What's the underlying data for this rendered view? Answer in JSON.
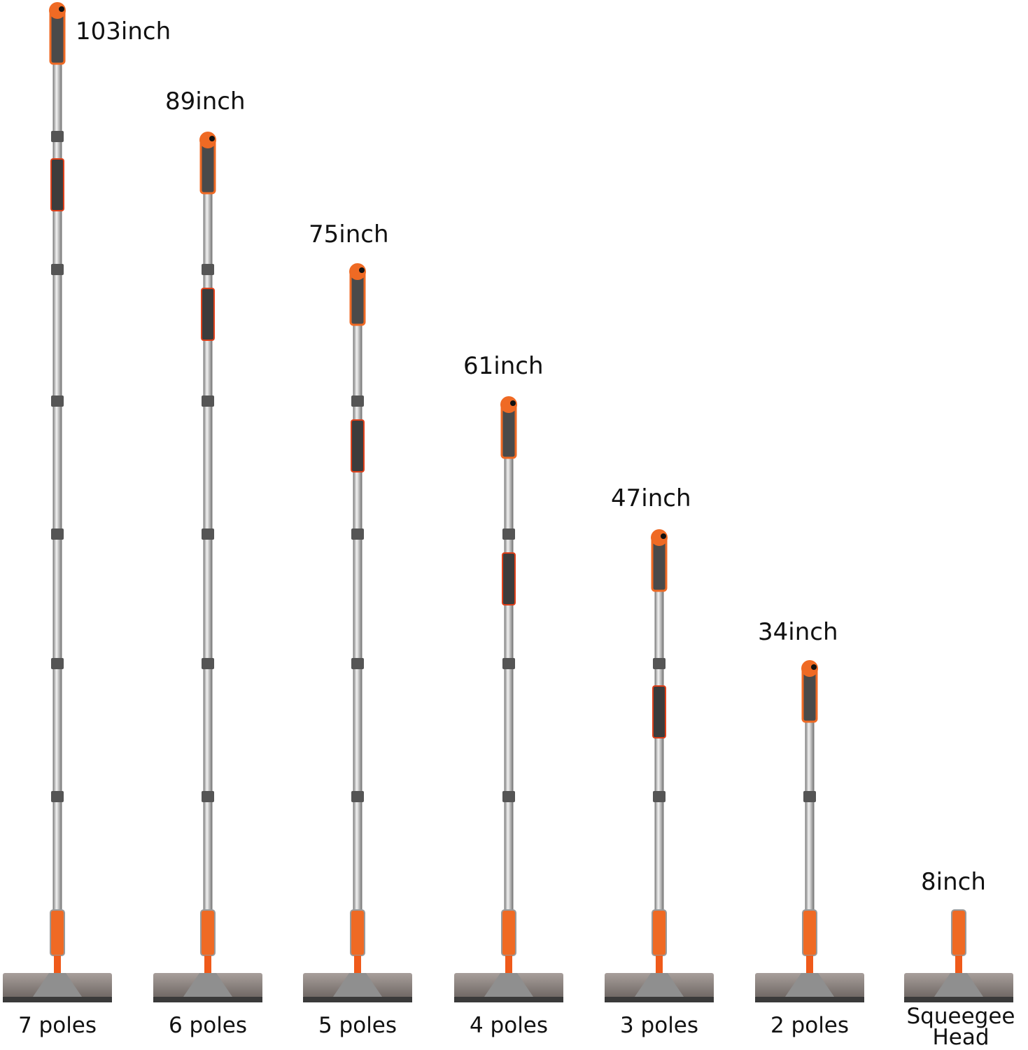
{
  "items": [
    {
      "length": "103inch",
      "label": "7 poles"
    },
    {
      "length": "89inch",
      "label": "6 poles"
    },
    {
      "length": "75inch",
      "label": "5 poles"
    },
    {
      "length": "61inch",
      "label": "4 poles"
    },
    {
      "length": "47inch",
      "label": "3 poles"
    },
    {
      "length": "34inch",
      "label": "2 poles"
    },
    {
      "length": "8inch",
      "label": "Squeegee Head"
    }
  ]
}
